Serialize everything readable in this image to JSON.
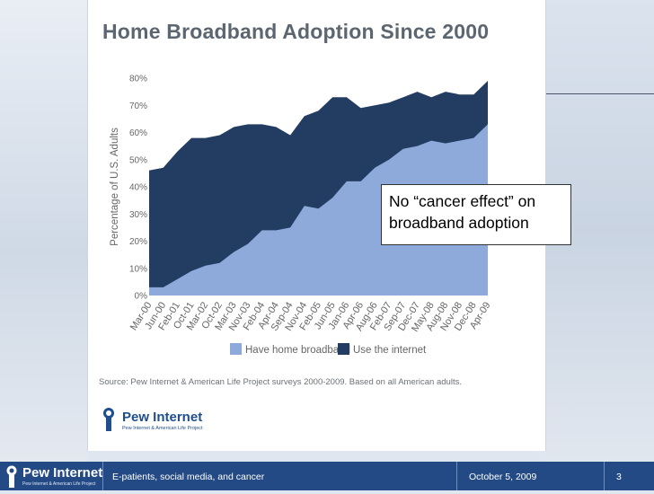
{
  "slide": {
    "callout": {
      "line1": "No “cancer effect” on",
      "line2": "broadband adoption"
    },
    "footer": {
      "brand": "Pew Internet",
      "tagline": "Pew Internet & American Life Project",
      "subject": "E-patients, social media, and cancer",
      "date": "October 5, 2009",
      "page": "3"
    }
  },
  "figure": {
    "source": "Source: Pew Internet & American Life Project surveys 2000-2009.  Based on all American adults.",
    "brand": "Pew Internet",
    "tagline": "Pew Internet & American Life Project"
  },
  "chart_data": {
    "type": "area",
    "title": "Home Broadband Adoption Since 2000",
    "ylabel": "Percentage of U.S. Adults",
    "xlabel": "",
    "ylim": [
      0,
      80
    ],
    "yticks": [
      "0%",
      "10%",
      "20%",
      "30%",
      "40%",
      "50%",
      "60%",
      "70%",
      "80%"
    ],
    "grid": false,
    "legend_position": "bottom",
    "categories": [
      "Mar-00",
      "Jun-00",
      "Feb-01",
      "Oct-01",
      "Mar-02",
      "Oct-02",
      "Mar-03",
      "Nov-03",
      "Feb-04",
      "Apr-04",
      "Sep-04",
      "Nov-04",
      "Feb-05",
      "Jun-05",
      "Jan-06",
      "Apr-06",
      "Aug-06",
      "Feb-07",
      "Sep-07",
      "Dec-07",
      "May-08",
      "Aug-08",
      "Nov-08",
      "Dec-08",
      "Apr-09"
    ],
    "series": [
      {
        "name": "Have home broadband",
        "color": "#8eaadb",
        "values": [
          3,
          3,
          6,
          9,
          11,
          12,
          16,
          19,
          24,
          24,
          25,
          33,
          32,
          36,
          42,
          42,
          47,
          50,
          54,
          55,
          57,
          56,
          57,
          58,
          63
        ]
      },
      {
        "name": "Use the internet",
        "color": "#223d61",
        "values": [
          46,
          47,
          53,
          58,
          58,
          59,
          62,
          63,
          63,
          62,
          59,
          66,
          68,
          73,
          73,
          69,
          70,
          71,
          73,
          75,
          73,
          75,
          74,
          74,
          79
        ]
      }
    ]
  }
}
